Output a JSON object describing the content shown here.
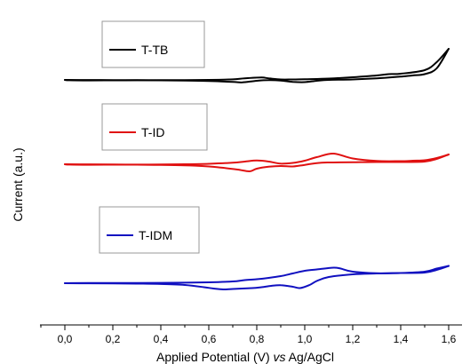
{
  "chart_data": {
    "type": "line",
    "xlabel": {
      "before": "Applied Potential (V) ",
      "italic": "vs",
      "after": " Ag/AgCl"
    },
    "ylabel": "Current (a.u.)",
    "xlim": [
      -0.1,
      1.65
    ],
    "xticks": [
      "0,0",
      "0,2",
      "0,4",
      "0,6",
      "0,8",
      "1,0",
      "1,2",
      "1,4",
      "1,6"
    ],
    "xtick_values": [
      0.0,
      0.2,
      0.4,
      0.6,
      0.8,
      1.0,
      1.2,
      1.4,
      1.6
    ],
    "grid": false,
    "legend_placement": "per-series, left",
    "series": [
      {
        "name": "T-TB",
        "color": "#000000",
        "cycles": [
          {
            "x": [
              0.0,
              0.1,
              0.2,
              0.3,
              0.4,
              0.5,
              0.6,
              0.7,
              0.74,
              0.8,
              0.85,
              0.9,
              0.95,
              1.0,
              1.05,
              1.1,
              1.2,
              1.3,
              1.4,
              1.45,
              1.5,
              1.55,
              1.6
            ],
            "y": [
              0.0,
              0.02,
              0.04,
              0.06,
              0.09,
              0.15,
              0.25,
              0.45,
              0.55,
              0.2,
              0.05,
              0.15,
              0.45,
              0.5,
              0.2,
              0.0,
              -0.1,
              -0.35,
              -0.75,
              -1.0,
              -1.3,
              -2.6,
              -7.0
            ]
          },
          {
            "x": [
              1.6,
              1.55,
              1.5,
              1.4,
              1.35,
              1.3,
              1.2,
              1.1,
              1.0,
              0.95,
              0.9,
              0.85,
              0.82,
              0.75,
              0.7,
              0.6,
              0.5,
              0.4,
              0.3,
              0.2,
              0.1,
              0.02,
              0.0
            ],
            "y": [
              -7.0,
              -4.0,
              -2.2,
              -1.4,
              -1.3,
              -1.0,
              -0.6,
              -0.3,
              -0.15,
              -0.1,
              -0.1,
              -0.35,
              -0.55,
              -0.35,
              -0.12,
              0.0,
              0.04,
              0.06,
              0.08,
              0.1,
              0.12,
              0.08,
              0.0
            ]
          }
        ]
      },
      {
        "name": "T-ID",
        "color": "#e01010",
        "cycles": [
          {
            "x": [
              0.0,
              0.1,
              0.2,
              0.3,
              0.4,
              0.5,
              0.6,
              0.65,
              0.72,
              0.77,
              0.8,
              0.85,
              0.9,
              0.95,
              0.98,
              1.05,
              1.1,
              1.2,
              1.3,
              1.4,
              1.5,
              1.55,
              1.6
            ],
            "y": [
              0.0,
              0.02,
              0.05,
              0.1,
              0.15,
              0.25,
              0.5,
              0.75,
              1.2,
              1.6,
              1.0,
              0.55,
              0.4,
              0.5,
              0.3,
              -0.25,
              -0.4,
              -0.45,
              -0.5,
              -0.5,
              -0.6,
              -1.2,
              -2.2
            ]
          },
          {
            "x": [
              1.6,
              1.55,
              1.5,
              1.45,
              1.4,
              1.3,
              1.2,
              1.12,
              1.05,
              1.0,
              0.95,
              0.9,
              0.85,
              0.8,
              0.75,
              0.7,
              0.6,
              0.5,
              0.4,
              0.3,
              0.2,
              0.1,
              0.02,
              0.0
            ],
            "y": [
              -2.2,
              -1.4,
              -0.9,
              -0.8,
              -0.7,
              -0.75,
              -1.3,
              -2.4,
              -1.6,
              -0.8,
              -0.3,
              -0.15,
              -0.6,
              -0.85,
              -0.6,
              -0.35,
              -0.1,
              0.0,
              0.05,
              0.08,
              0.1,
              0.12,
              0.08,
              0.0
            ]
          }
        ]
      },
      {
        "name": "T-IDM",
        "color": "#1010c0",
        "cycles": [
          {
            "x": [
              0.0,
              0.1,
              0.2,
              0.3,
              0.4,
              0.5,
              0.58,
              0.62,
              0.66,
              0.7,
              0.78,
              0.82,
              0.86,
              0.9,
              0.95,
              0.98,
              1.02,
              1.05,
              1.1,
              1.2,
              1.3,
              1.4,
              1.5,
              1.55,
              1.6
            ],
            "y": [
              0.0,
              0.02,
              0.05,
              0.1,
              0.18,
              0.4,
              0.9,
              1.2,
              1.4,
              1.3,
              1.1,
              0.9,
              0.6,
              0.45,
              0.8,
              1.1,
              0.4,
              -0.5,
              -1.4,
              -2.0,
              -2.2,
              -2.3,
              -2.6,
              -3.3,
              -3.9
            ]
          },
          {
            "x": [
              1.6,
              1.55,
              1.5,
              1.4,
              1.3,
              1.2,
              1.15,
              1.12,
              1.05,
              1.0,
              0.95,
              0.9,
              0.85,
              0.8,
              0.75,
              0.7,
              0.6,
              0.5,
              0.4,
              0.3,
              0.2,
              0.1,
              0.02,
              0.0
            ],
            "y": [
              -3.9,
              -3.0,
              -2.4,
              -2.3,
              -2.25,
              -2.6,
              -3.3,
              -3.5,
              -3.1,
              -2.8,
              -2.2,
              -1.6,
              -1.2,
              -0.9,
              -0.7,
              -0.4,
              -0.2,
              -0.12,
              -0.08,
              -0.06,
              -0.05,
              -0.05,
              -0.03,
              0.0
            ]
          }
        ]
      }
    ]
  }
}
